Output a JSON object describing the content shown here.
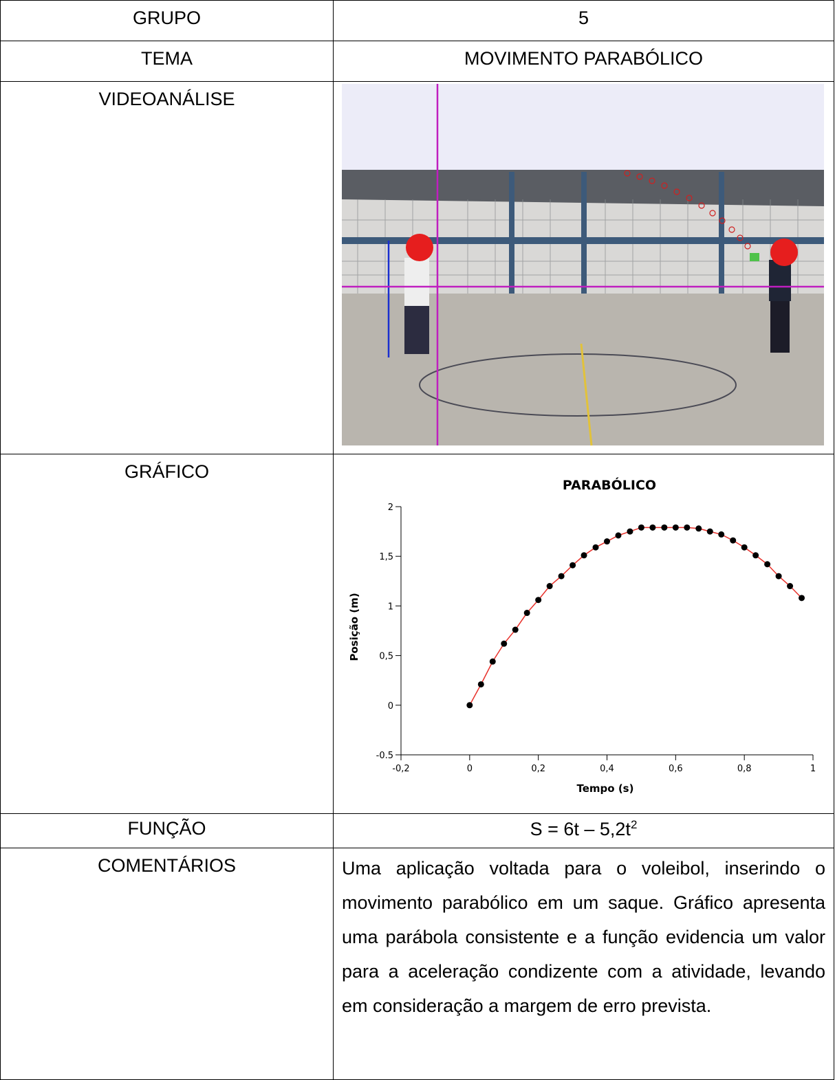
{
  "table": {
    "rows": [
      [
        "GRUPO",
        "5"
      ],
      [
        "TEMA",
        "MOVIMENTO PARABÓLICO"
      ],
      [
        "VIDEOANÁLISE"
      ],
      [
        "GRÁFICO"
      ],
      [
        "FUNÇÃO",
        {
          "text": "S = 6t – 5,2t",
          "sup": "2"
        }
      ],
      [
        "COMENTÁRIOS",
        "Uma aplicação voltada para o voleibol, inserindo o movimento parabólico em um saque. Gráfico apresenta uma parábola consistente e a função evidencia um valor para a aceleração condizente com a atividade, levando em consideração a margem de erro prevista."
      ]
    ]
  },
  "chart_data": {
    "type": "scatter",
    "title": "PARABÓLICO",
    "x_label": "Tempo (s)",
    "y_label": "Posição (m)",
    "xlim": [
      -0.2,
      1
    ],
    "ylim": [
      -0.5,
      2
    ],
    "xticks": [
      {
        "value": -0.2,
        "label": "-0,2"
      },
      0,
      {
        "value": 0.2,
        "label": "0,2"
      },
      {
        "value": 0.4,
        "label": "0,4"
      },
      {
        "value": 0.6,
        "label": "0,6"
      },
      {
        "value": 0.8,
        "label": "0,8"
      },
      1
    ],
    "yticks": [
      {
        "value": -0.5,
        "label": "-0.5"
      },
      0,
      {
        "value": 0.5,
        "label": "0,5"
      },
      1,
      {
        "value": 1.5,
        "label": "1,5"
      },
      2
    ],
    "series": [
      {
        "color": "#000000",
        "line_color": "#e8302a",
        "x": [
          0,
          0.033,
          0.067,
          0.1,
          0.133,
          0.167,
          0.2,
          0.233,
          0.267,
          0.3,
          0.333,
          0.367,
          0.4,
          0.433,
          0.467,
          0.5,
          0.533,
          0.567,
          0.6,
          0.633,
          0.667,
          0.7,
          0.733,
          0.767,
          0.8,
          0.833,
          0.867,
          0.9,
          0.933,
          0.967
        ],
        "values": [
          0,
          0.21,
          0.44,
          0.62,
          0.76,
          0.93,
          1.06,
          1.2,
          1.3,
          1.41,
          1.51,
          1.59,
          1.65,
          1.71,
          1.75,
          1.79,
          1.79,
          1.79,
          1.79,
          1.79,
          1.78,
          1.75,
          1.72,
          1.66,
          1.59,
          1.51,
          1.42,
          1.3,
          1.2,
          1.08
        ]
      }
    ]
  }
}
